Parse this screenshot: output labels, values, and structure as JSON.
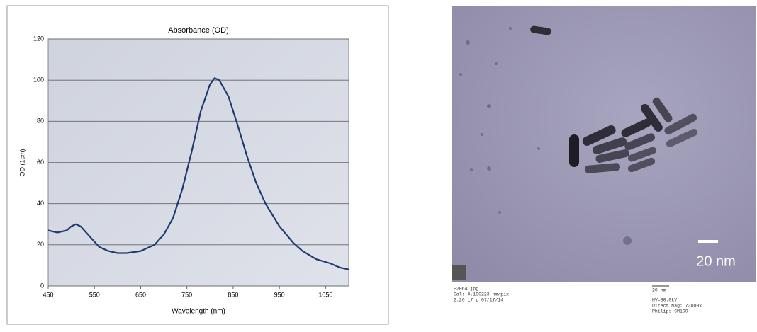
{
  "chart_data": {
    "type": "line",
    "title": "Absorbance (OD)",
    "xlabel": "Wavelength (nm)",
    "ylabel": "OD (1cm)",
    "x": [
      450,
      470,
      490,
      500,
      510,
      520,
      540,
      560,
      580,
      600,
      620,
      650,
      680,
      700,
      720,
      740,
      760,
      780,
      800,
      810,
      820,
      840,
      860,
      880,
      900,
      920,
      950,
      980,
      1000,
      1030,
      1060,
      1080,
      1100
    ],
    "values": [
      27,
      26,
      27,
      29,
      30,
      29,
      24,
      19,
      17,
      16,
      16,
      17,
      20,
      25,
      33,
      47,
      65,
      85,
      98,
      101,
      100,
      92,
      78,
      63,
      50,
      40,
      29,
      21,
      17,
      13,
      11,
      9,
      8
    ],
    "color": "#1f3a6e",
    "xlim": [
      450,
      1100
    ],
    "xticks": [
      450,
      550,
      650,
      750,
      850,
      950,
      1050
    ],
    "ylim": [
      0,
      120
    ],
    "yticks": [
      0,
      20,
      40,
      60,
      80,
      100,
      120
    ],
    "grid": true
  },
  "image": {
    "scale_label": "20 nm",
    "caption_left": [
      "E2064.jpg",
      "Cal: 0.190223 nm/pix",
      "2:26:17 p 07/17/14"
    ],
    "caption_right": [
      "20 nm",
      "HV=80.0kV",
      "Direct Mag: 73000x",
      "Philips CM100"
    ]
  }
}
